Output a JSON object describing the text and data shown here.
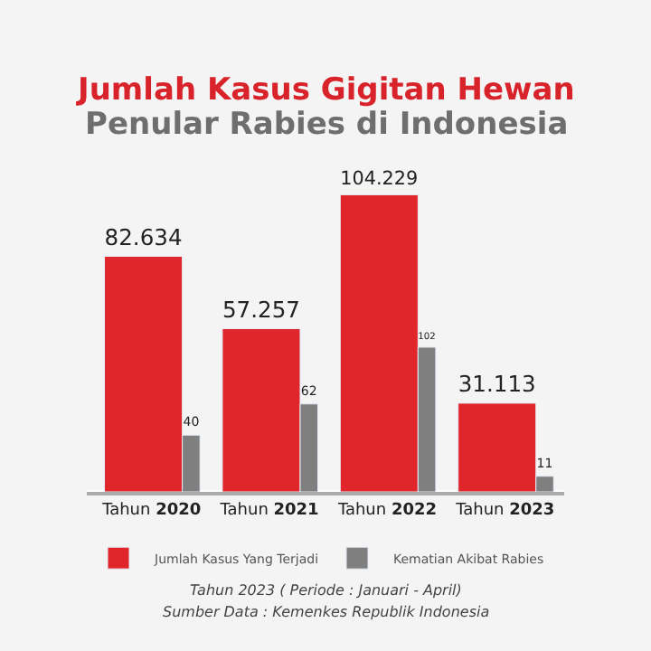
{
  "chart_data": {
    "type": "bar",
    "title": "Jumlah Kasus Gigitan Hewan",
    "subtitle": "Penular Rabies di Indonesia",
    "categories": [
      "Tahun 2020",
      "Tahun 2021",
      "Tahun 2022",
      "Tahun 2023"
    ],
    "series": [
      {
        "name": "Jumlah Kasus Yang Terjadi",
        "color": "#e0262b",
        "values": [
          82634,
          57257,
          104229,
          31113
        ],
        "value_labels": [
          "82.634",
          "57.257",
          "104.229",
          "31.113"
        ]
      },
      {
        "name": "Kematian Akibat Rabies",
        "color": "#7f7f7f",
        "axis": "y2",
        "values": [
          40,
          62,
          102,
          11
        ],
        "value_labels": [
          "40",
          "62",
          "102",
          "11"
        ]
      }
    ],
    "legend": "bottom",
    "annotations": [
      "Tahun 2023 ( Periode : Januari - April)",
      "Sumber Data : Kemenkes Republik Indonesia"
    ]
  }
}
